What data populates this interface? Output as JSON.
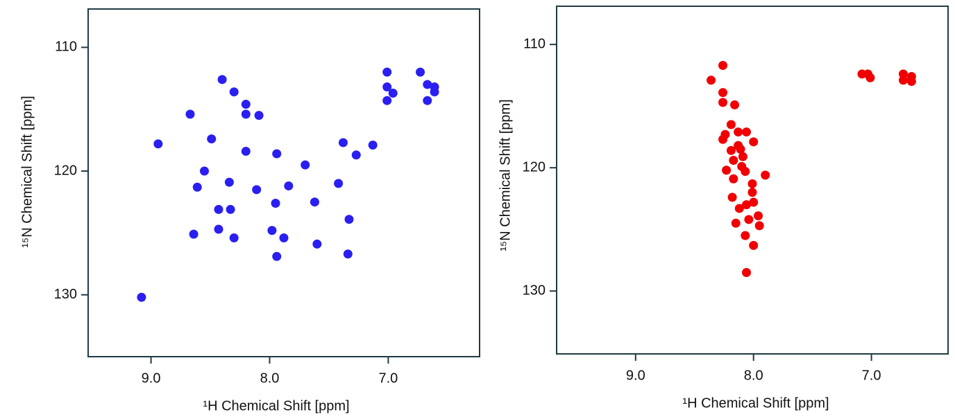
{
  "chart_data": [
    {
      "type": "scatter",
      "color": "#2a1ff0",
      "x_label": "¹H Chemical Shift [ppm]",
      "y_label": "¹⁵N Chemical Shift [ppm]",
      "xlim": [
        9.53,
        6.23
      ],
      "ylim": [
        135,
        106.9
      ],
      "xticks": [
        {
          "value": 9,
          "label": "9.0"
        },
        {
          "value": 8,
          "label": "8.0"
        },
        {
          "value": 7,
          "label": "7.0"
        }
      ],
      "yticks": [
        110,
        120,
        130
      ],
      "x": [
        7.01,
        6.73,
        8.4,
        7.01,
        6.67,
        6.61,
        8.3,
        6.96,
        6.61,
        7.01,
        6.67,
        8.2,
        8.67,
        8.2,
        8.09,
        8.49,
        8.94,
        7.38,
        7.13,
        8.2,
        7.94,
        7.27,
        7.7,
        8.55,
        8.34,
        8.61,
        7.84,
        7.42,
        8.11,
        7.95,
        7.62,
        8.43,
        8.33,
        7.33,
        8.43,
        7.98,
        8.64,
        8.3,
        7.88,
        7.6,
        7.94,
        7.34,
        9.08
      ],
      "values": [
        112.0,
        112.0,
        112.6,
        113.2,
        113.0,
        113.2,
        113.6,
        113.7,
        113.6,
        114.3,
        114.3,
        114.6,
        115.4,
        115.4,
        115.5,
        117.4,
        117.8,
        117.7,
        117.9,
        118.4,
        118.6,
        118.7,
        119.5,
        120.0,
        120.9,
        121.3,
        121.2,
        121.0,
        121.5,
        122.6,
        122.5,
        123.1,
        123.1,
        123.9,
        124.7,
        124.8,
        125.1,
        125.4,
        125.4,
        125.9,
        126.9,
        126.7,
        130.2
      ]
    },
    {
      "type": "scatter",
      "color": "#f00000",
      "x_label": "¹H Chemical Shift [ppm]",
      "y_label": "¹⁵N Chemical Shift [ppm]",
      "xlim": [
        9.67,
        6.35
      ],
      "ylim": [
        135.1,
        106.9
      ],
      "xticks": [
        {
          "value": 9,
          "label": "9.0"
        },
        {
          "value": 8,
          "label": "8.0"
        },
        {
          "value": 7,
          "label": "7.0"
        }
      ],
      "yticks": [
        110,
        120,
        130
      ],
      "x": [
        8.26,
        8.36,
        7.08,
        7.03,
        7.01,
        6.73,
        6.66,
        6.73,
        6.66,
        8.26,
        8.26,
        8.16,
        8.19,
        8.24,
        8.26,
        8.13,
        8.06,
        8.0,
        8.13,
        8.19,
        8.11,
        8.09,
        8.17,
        8.1,
        8.23,
        8.07,
        7.9,
        8.17,
        8.01,
        8.01,
        8.18,
        8.0,
        8.06,
        8.12,
        7.96,
        8.04,
        8.15,
        7.95,
        8.07,
        8.0,
        8.06
      ],
      "values": [
        111.7,
        112.9,
        112.4,
        112.4,
        112.7,
        112.4,
        112.6,
        112.9,
        113.0,
        113.9,
        114.7,
        114.9,
        116.5,
        117.3,
        117.7,
        117.1,
        117.1,
        117.9,
        118.2,
        118.6,
        118.5,
        119.1,
        119.4,
        119.9,
        120.2,
        120.3,
        120.6,
        120.9,
        121.3,
        122.0,
        122.4,
        122.8,
        123.0,
        123.3,
        123.9,
        124.2,
        124.5,
        124.7,
        125.5,
        126.3,
        128.5
      ]
    }
  ]
}
